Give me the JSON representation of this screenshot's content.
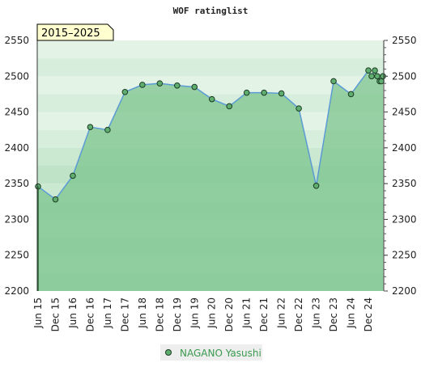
{
  "chart_data": {
    "type": "area",
    "title": "WOF ratinglist",
    "badge": "2015–2025",
    "xlabel": "",
    "ylabel": "",
    "ylim": [
      2200,
      2550
    ],
    "yticks": [
      2200,
      2250,
      2300,
      2350,
      2400,
      2450,
      2500,
      2550
    ],
    "x_tick_labels": [
      "Jun 15",
      "Dec 15",
      "Jun 16",
      "Dec 16",
      "Jun 17",
      "Dec 17",
      "Jun 18",
      "Dec 18",
      "Dec 19",
      "Jun 19",
      "Jun 20",
      "Dec 20",
      "Jun 21",
      "Dec 21",
      "Jun 22",
      "Dec 22",
      "Jun 23",
      "Dec 23",
      "Jun 24",
      "Dec 24"
    ],
    "legend_position": "bottom-center",
    "colors": {
      "area": "#7cc48e",
      "line": "#5b9bd5",
      "marker": "#5fae70",
      "band_dark": "#b9e0c2",
      "band_light": "#e3f3e6"
    },
    "series": [
      {
        "name": "NAGANO Yasushi",
        "values": [
          2346,
          2328,
          2361,
          2429,
          2425,
          2478,
          2488,
          2490,
          2487,
          2485,
          2468,
          2458,
          2477,
          2477,
          2476,
          2455,
          2347,
          2493,
          2475,
          2508,
          2500,
          2508,
          2500,
          2493,
          2493,
          2500
        ]
      }
    ]
  }
}
